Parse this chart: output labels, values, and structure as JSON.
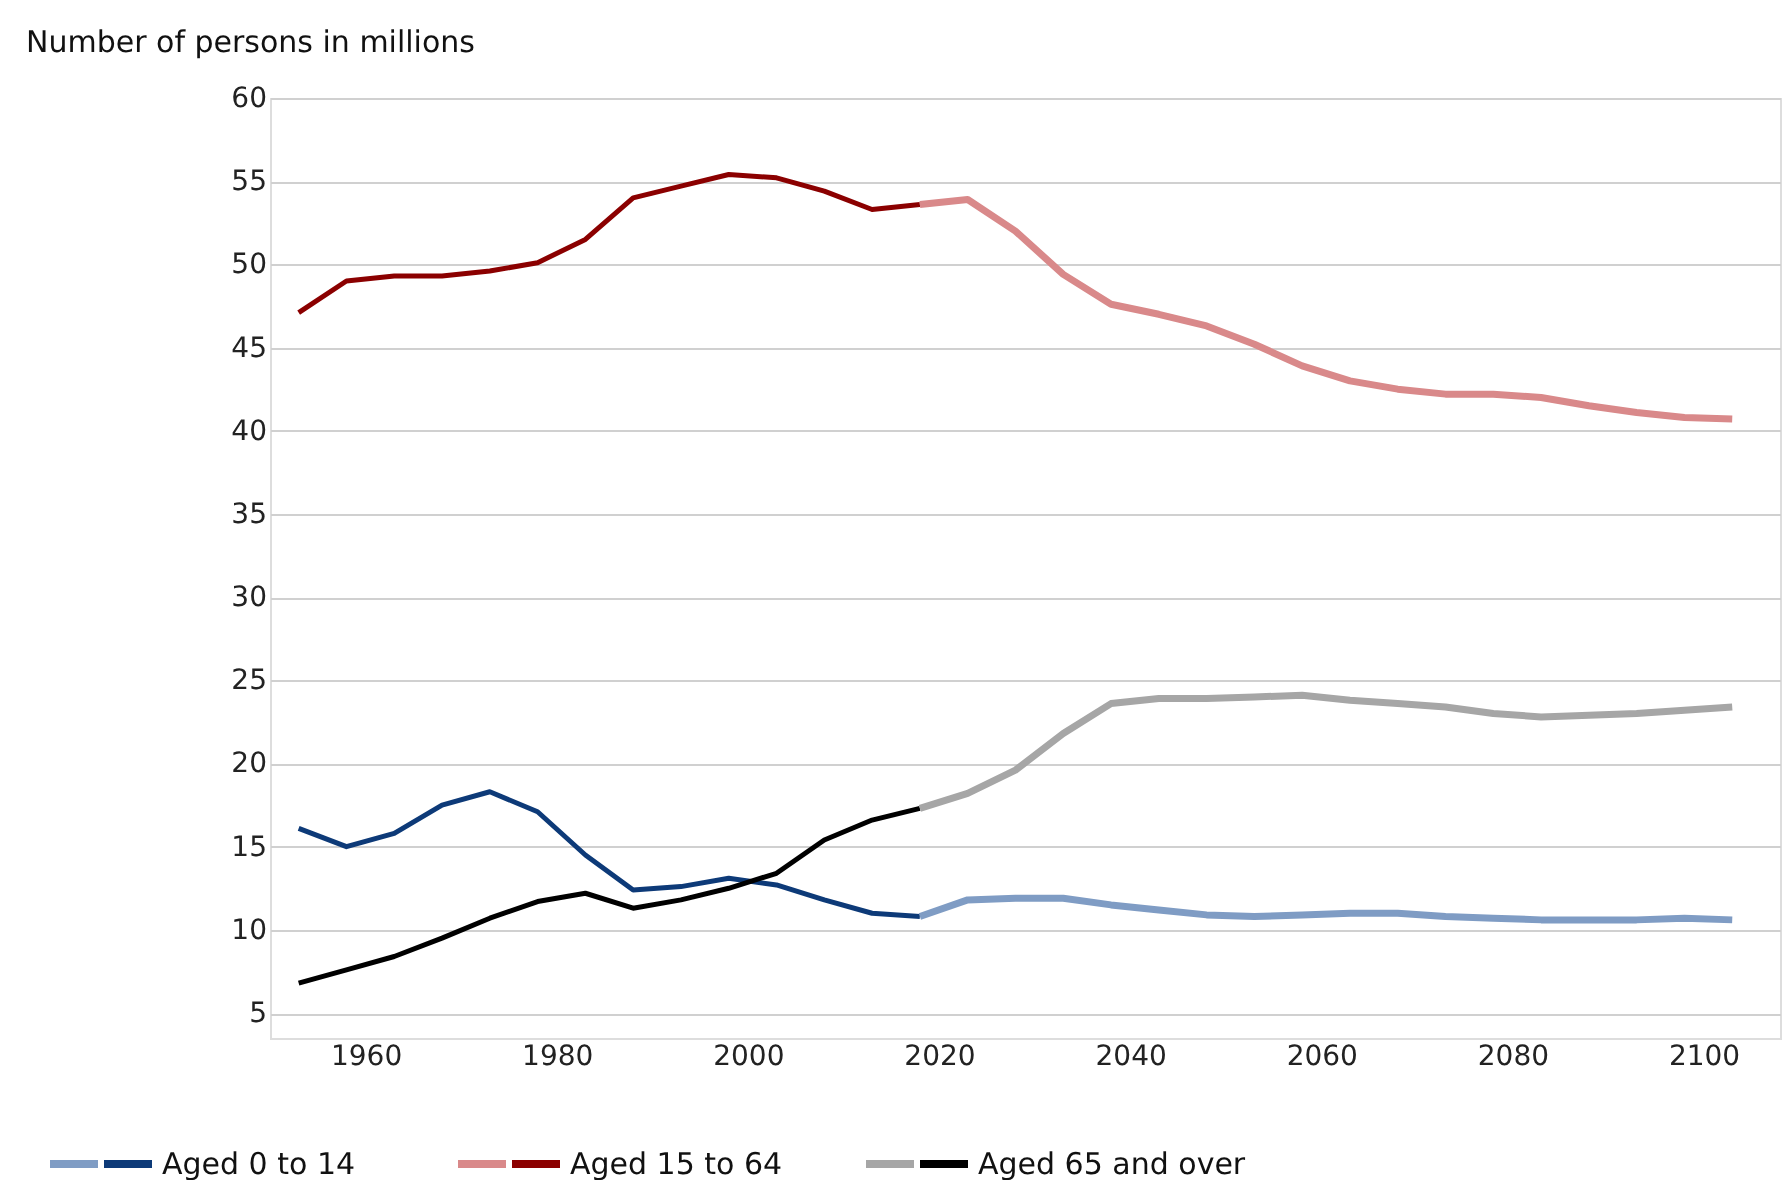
{
  "chart_data": {
    "type": "line",
    "ylabel": "Number of persons in millions",
    "xlim": [
      1950,
      2108
    ],
    "xticks": [
      1960,
      1980,
      2000,
      2020,
      2040,
      2060,
      2080,
      2100
    ],
    "ylim": [
      3.5,
      60
    ],
    "yticks": [
      5,
      10,
      15,
      20,
      25,
      30,
      35,
      40,
      45,
      50,
      55,
      60
    ],
    "grid": "y",
    "legend": "bottom",
    "marker": "none",
    "line_style": "solid",
    "series": [
      {
        "name": "Aged 0 to 14",
        "color": "#0d3a78",
        "x": [
          1953,
          1958,
          1963,
          1968,
          1973,
          1978,
          1983,
          1988,
          1993,
          1998,
          2003,
          2008,
          2013,
          2018
        ],
        "values": [
          16.1,
          15.0,
          15.8,
          17.5,
          18.3,
          17.1,
          14.5,
          12.4,
          12.6,
          13.1,
          12.7,
          11.8,
          11.0,
          10.8
        ]
      },
      {
        "color": "#7f9cc4",
        "x": [
          2018,
          2023,
          2028,
          2033,
          2038,
          2043,
          2048,
          2053,
          2058,
          2063,
          2068,
          2073,
          2078,
          2083,
          2088,
          2093,
          2098,
          2103
        ],
        "values": [
          10.8,
          11.8,
          11.9,
          11.9,
          11.5,
          11.2,
          10.9,
          10.8,
          10.9,
          11.0,
          11.0,
          10.8,
          10.7,
          10.6,
          10.6,
          10.6,
          10.7,
          10.6
        ]
      },
      {
        "name": "Aged 15 to 64",
        "color": "#8b0000",
        "x": [
          1953,
          1958,
          1963,
          1968,
          1973,
          1978,
          1983,
          1988,
          1993,
          1998,
          2003,
          2008,
          2013,
          2018
        ],
        "values": [
          47.1,
          49.0,
          49.3,
          49.3,
          49.6,
          50.1,
          51.5,
          54.0,
          54.7,
          55.4,
          55.2,
          54.4,
          53.3,
          53.6
        ]
      },
      {
        "color": "#d9898a",
        "x": [
          2018,
          2023,
          2028,
          2033,
          2038,
          2043,
          2048,
          2053,
          2058,
          2063,
          2068,
          2073,
          2078,
          2083,
          2088,
          2093,
          2098,
          2103
        ],
        "values": [
          53.6,
          53.9,
          52.0,
          49.4,
          47.6,
          47.0,
          46.3,
          45.2,
          43.9,
          43.0,
          42.5,
          42.2,
          42.2,
          42.0,
          41.5,
          41.1,
          40.8,
          40.7
        ]
      },
      {
        "name": "Aged 65 and over",
        "color": "#000000",
        "x": [
          1953,
          1958,
          1963,
          1968,
          1973,
          1978,
          1983,
          1988,
          1993,
          1998,
          2003,
          2008,
          2013,
          2018
        ],
        "values": [
          6.8,
          7.6,
          8.4,
          9.5,
          10.7,
          11.7,
          12.2,
          11.3,
          11.8,
          12.5,
          13.4,
          15.4,
          16.6,
          17.3
        ]
      },
      {
        "color": "#a6a6a6",
        "x": [
          2018,
          2023,
          2028,
          2033,
          2038,
          2043,
          2048,
          2053,
          2058,
          2063,
          2068,
          2073,
          2078,
          2083,
          2088,
          2093,
          2098,
          2103
        ],
        "values": [
          17.3,
          18.2,
          19.6,
          21.8,
          23.6,
          23.9,
          23.9,
          24.0,
          24.1,
          23.8,
          23.6,
          23.4,
          23.0,
          22.8,
          22.9,
          23.0,
          23.2,
          23.4
        ]
      }
    ]
  }
}
